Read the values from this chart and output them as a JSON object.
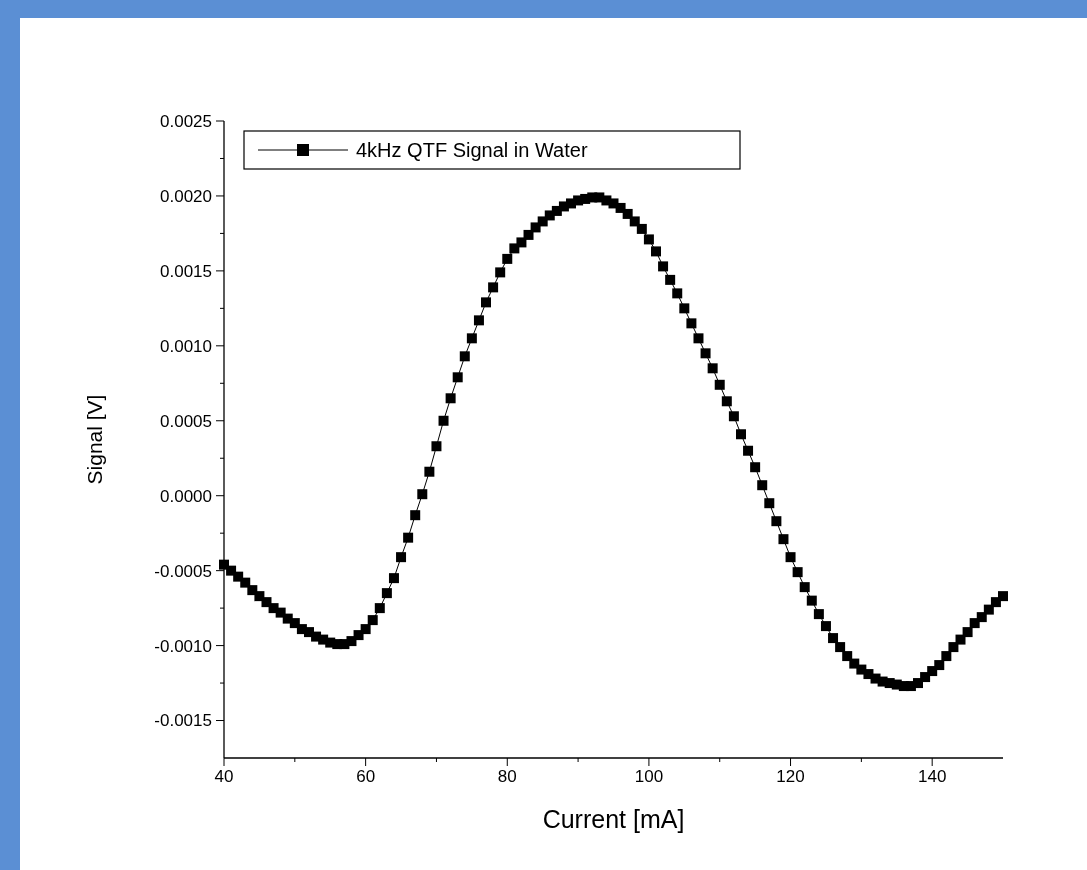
{
  "chart_data": {
    "type": "line",
    "xlabel": "Current [mA]",
    "ylabel": "Signal [V]",
    "xlim": [
      40,
      150
    ],
    "ylim": [
      -0.00175,
      0.0025
    ],
    "xticks": [
      40,
      {
        "value": 50,
        "label": null
      },
      60,
      {
        "value": 70,
        "label": null
      },
      80,
      {
        "value": 90,
        "label": null
      },
      100,
      {
        "value": 110,
        "label": null
      },
      120,
      {
        "value": 130,
        "label": null
      },
      140
    ],
    "yticks": [
      {
        "value": -0.0015,
        "label": "-0.0015"
      },
      {
        "value": -0.00125,
        "label": null
      },
      {
        "value": -0.001,
        "label": "-0.0010"
      },
      {
        "value": -0.00075,
        "label": null
      },
      {
        "value": -0.0005,
        "label": "-0.0005"
      },
      {
        "value": -0.00025,
        "label": null
      },
      {
        "value": 0,
        "label": "0.0000"
      },
      {
        "value": 0.00025,
        "label": null
      },
      {
        "value": 0.0005,
        "label": "0.0005"
      },
      {
        "value": 0.00075,
        "label": null
      },
      {
        "value": 0.001,
        "label": "0.0010"
      },
      {
        "value": 0.00125,
        "label": null
      },
      {
        "value": 0.0015,
        "label": "0.0015"
      },
      {
        "value": 0.00175,
        "label": null
      },
      {
        "value": 0.002,
        "label": "0.0020"
      },
      {
        "value": 0.00225,
        "label": null
      },
      {
        "value": 0.0025,
        "label": "0.0025"
      }
    ],
    "x": [
      40,
      41,
      42,
      43,
      44,
      45,
      46,
      47,
      48,
      49,
      50,
      51,
      52,
      53,
      54,
      55,
      56,
      57,
      58,
      59,
      60,
      61,
      62,
      63,
      64,
      65,
      66,
      67,
      68,
      69,
      70,
      71,
      72,
      73,
      74,
      75,
      76,
      77,
      78,
      79,
      80,
      81,
      82,
      83,
      84,
      85,
      86,
      87,
      88,
      89,
      90,
      91,
      92,
      93,
      94,
      95,
      96,
      97,
      98,
      99,
      100,
      101,
      102,
      103,
      104,
      105,
      106,
      107,
      108,
      109,
      110,
      111,
      112,
      113,
      114,
      115,
      116,
      117,
      118,
      119,
      120,
      121,
      122,
      123,
      124,
      125,
      126,
      127,
      128,
      129,
      130,
      131,
      132,
      133,
      134,
      135,
      136,
      137,
      138,
      139,
      140,
      141,
      142,
      143,
      144,
      145,
      146,
      147,
      148,
      149,
      150
    ],
    "series": [
      {
        "name": "4kHz QTF Signal in Water",
        "color": "#000000",
        "values": [
          -0.00046,
          -0.0005,
          -0.00054,
          -0.00058,
          -0.00063,
          -0.00067,
          -0.00071,
          -0.00075,
          -0.00078,
          -0.00082,
          -0.00085,
          -0.00089,
          -0.00091,
          -0.00094,
          -0.00096,
          -0.00098,
          -0.00099,
          -0.00099,
          -0.00097,
          -0.00093,
          -0.00089,
          -0.00083,
          -0.00075,
          -0.00065,
          -0.00055,
          -0.00041,
          -0.00028,
          -0.00013,
          1e-05,
          0.00016,
          0.00033,
          0.0005,
          0.00065,
          0.00079,
          0.00093,
          0.00105,
          0.00117,
          0.00129,
          0.00139,
          0.00149,
          0.00158,
          0.00165,
          0.00169,
          0.00174,
          0.00179,
          0.00183,
          0.00187,
          0.0019,
          0.00193,
          0.00195,
          0.00197,
          0.00198,
          0.00199,
          0.00199,
          0.00197,
          0.00195,
          0.00192,
          0.00188,
          0.00183,
          0.00178,
          0.00171,
          0.00163,
          0.00153,
          0.00144,
          0.00135,
          0.00125,
          0.00115,
          0.00105,
          0.00095,
          0.00085,
          0.00074,
          0.00063,
          0.00053,
          0.00041,
          0.0003,
          0.00019,
          7e-05,
          -5e-05,
          -0.00017,
          -0.00029,
          -0.00041,
          -0.00051,
          -0.00061,
          -0.0007,
          -0.00079,
          -0.00087,
          -0.00095,
          -0.00101,
          -0.00107,
          -0.00112,
          -0.00116,
          -0.00119,
          -0.00122,
          -0.00124,
          -0.00125,
          -0.00126,
          -0.00127,
          -0.00127,
          -0.00125,
          -0.00121,
          -0.00117,
          -0.00113,
          -0.00107,
          -0.00101,
          -0.00096,
          -0.00091,
          -0.00085,
          -0.00081,
          -0.00076,
          -0.00071,
          -0.00067
        ]
      }
    ],
    "marker": "square",
    "line_style": "solid",
    "legend": "top left",
    "grid": false
  }
}
